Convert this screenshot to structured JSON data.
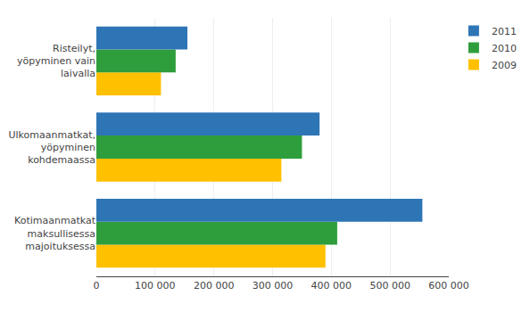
{
  "chart_data": {
    "type": "bar",
    "orientation": "horizontal",
    "categories": [
      "Kotimaanmatkat\nmaksullisessa\nmajoituksessa",
      "Ulkomaanmatkat,\nyöpyminen\nkohdemaassa",
      "Risteilyt,\nyöpyminen vain\nlaivalla"
    ],
    "series": [
      {
        "name": "2011",
        "color": "#2e75b6",
        "values": [
          555000,
          380000,
          155000
        ]
      },
      {
        "name": "2010",
        "color": "#2e9e3c",
        "values": [
          410000,
          350000,
          135000
        ]
      },
      {
        "name": "2009",
        "color": "#ffc000",
        "values": [
          390000,
          315000,
          110000
        ]
      }
    ],
    "xlim": [
      0,
      600000
    ],
    "xticks": [
      0,
      {
        "value": 100000,
        "label": "100 000"
      },
      {
        "value": 200000,
        "label": "200 000"
      },
      {
        "value": 300000,
        "label": "300 000"
      },
      {
        "value": 400000,
        "label": "400 000"
      },
      {
        "value": 500000,
        "label": "500 000"
      },
      {
        "value": 600000,
        "label": "600 000"
      }
    ],
    "grid": true,
    "legend": "right"
  }
}
